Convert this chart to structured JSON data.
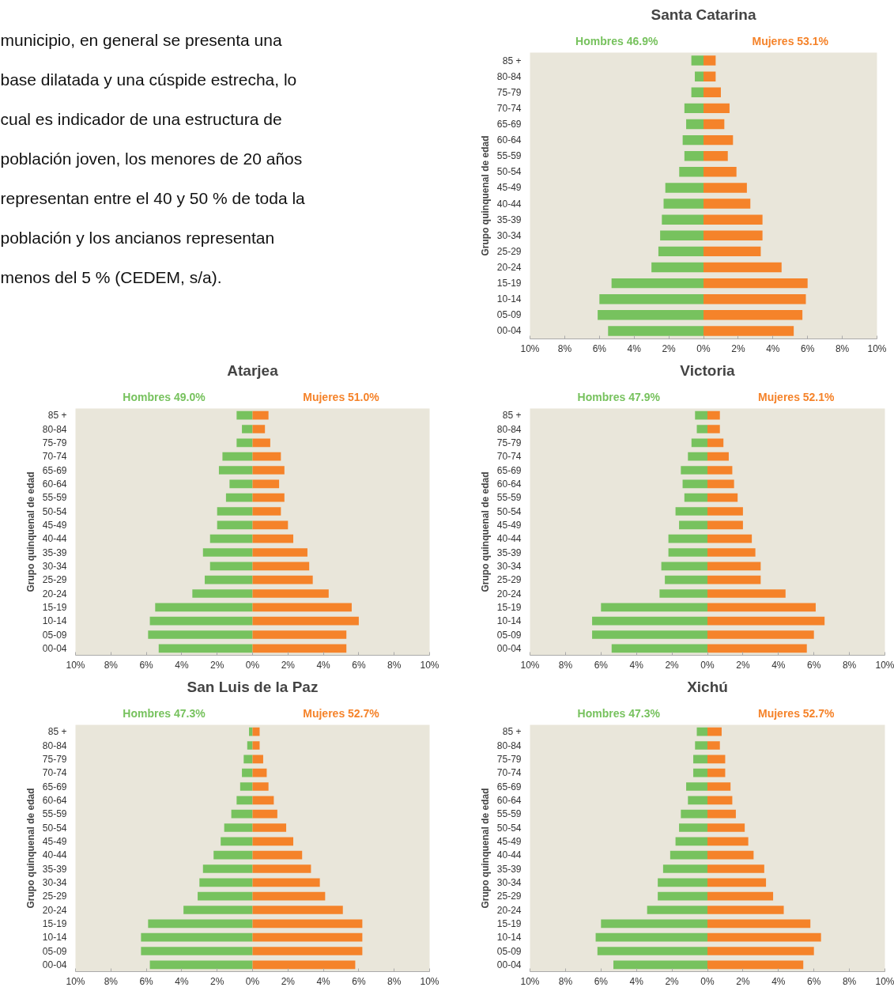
{
  "chart_data": [
    {
      "type": "other",
      "annotations": [
        "municipio, en general se presenta una",
        "base dilatada y una cúspide estrecha, lo",
        "cual es indicador de una estructura de",
        "población joven, los menores de 20 años",
        "representan entre el 40 y 50 % de toda la",
        "población y los ancianos representan",
        "menos del 5 % (CEDEM, s/a)."
      ]
    },
    {
      "type": "bar",
      "orientation": "horizontal",
      "stacked": true,
      "title": "Santa Catarina",
      "ylabel": "Grupo quinquenal de edad",
      "categories": [
        "85 +",
        "80-84",
        "75-79",
        "70-74",
        "65-69",
        "60-64",
        "55-59",
        "50-54",
        "45-49",
        "40-44",
        "35-39",
        "30-34",
        "25-29",
        "20-24",
        "15-19",
        "10-14",
        "05-09",
        "00-04"
      ],
      "series": [
        {
          "name": "Hombres 46.9%",
          "color": "#77c25e",
          "values": [
            -0.7,
            -0.5,
            -0.7,
            -1.1,
            -1.0,
            -1.2,
            -1.1,
            -1.4,
            -2.2,
            -2.3,
            -2.4,
            -2.5,
            -2.6,
            -3.0,
            -5.3,
            -6.0,
            -6.1,
            -5.5
          ]
        },
        {
          "name": "Mujeres 53.1%",
          "color": "#f5832a",
          "values": [
            0.7,
            0.7,
            1.0,
            1.5,
            1.2,
            1.7,
            1.4,
            1.9,
            2.5,
            2.7,
            3.4,
            3.4,
            3.3,
            4.5,
            6.0,
            5.9,
            5.7,
            5.2
          ]
        }
      ],
      "xlim": [
        -10,
        10
      ],
      "xticks": [
        {
          "value": -10,
          "label": "10%"
        },
        {
          "value": -8,
          "label": "8%"
        },
        {
          "value": -6,
          "label": "6%"
        },
        {
          "value": -4,
          "label": "4%"
        },
        {
          "value": -2,
          "label": "2%"
        },
        {
          "value": 0,
          "label": "0%"
        },
        {
          "value": 2,
          "label": "2%"
        },
        {
          "value": 4,
          "label": "4%"
        },
        {
          "value": 6,
          "label": "6%"
        },
        {
          "value": 8,
          "label": "8%"
        },
        {
          "value": 10,
          "label": "10%"
        }
      ]
    },
    {
      "type": "bar",
      "orientation": "horizontal",
      "stacked": true,
      "title": "Atarjea",
      "ylabel": "Grupo quinquenal de edad",
      "categories": [
        "85 +",
        "80-84",
        "75-79",
        "70-74",
        "65-69",
        "60-64",
        "55-59",
        "50-54",
        "45-49",
        "40-44",
        "35-39",
        "30-34",
        "25-29",
        "20-24",
        "15-19",
        "10-14",
        "05-09",
        "00-04"
      ],
      "series": [
        {
          "name": "Hombres 49.0%",
          "color": "#77c25e",
          "values": [
            -0.9,
            -0.6,
            -0.9,
            -1.7,
            -1.9,
            -1.3,
            -1.5,
            -2.0,
            -2.0,
            -2.4,
            -2.8,
            -2.4,
            -2.7,
            -3.4,
            -5.5,
            -5.8,
            -5.9,
            -5.3
          ]
        },
        {
          "name": "Mujeres 51.0%",
          "color": "#f5832a",
          "values": [
            0.9,
            0.7,
            1.0,
            1.6,
            1.8,
            1.5,
            1.8,
            1.6,
            2.0,
            2.3,
            3.1,
            3.2,
            3.4,
            4.3,
            5.6,
            6.0,
            5.3,
            5.3
          ]
        }
      ],
      "xlim": [
        -10,
        10
      ],
      "xticks": [
        {
          "value": -10,
          "label": "10%"
        },
        {
          "value": -8,
          "label": "8%"
        },
        {
          "value": -6,
          "label": "6%"
        },
        {
          "value": -4,
          "label": "4%"
        },
        {
          "value": -2,
          "label": "2%"
        },
        {
          "value": 0,
          "label": "0%"
        },
        {
          "value": 2,
          "label": "2%"
        },
        {
          "value": 4,
          "label": "4%"
        },
        {
          "value": 6,
          "label": "6%"
        },
        {
          "value": 8,
          "label": "8%"
        },
        {
          "value": 10,
          "label": "10%"
        }
      ]
    },
    {
      "type": "bar",
      "orientation": "horizontal",
      "stacked": true,
      "title": "Victoria",
      "ylabel": "Grupo quinquenal de edad",
      "categories": [
        "85 +",
        "80-84",
        "75-79",
        "70-74",
        "65-69",
        "60-64",
        "55-59",
        "50-54",
        "45-49",
        "40-44",
        "35-39",
        "30-34",
        "25-29",
        "20-24",
        "15-19",
        "10-14",
        "05-09",
        "00-04"
      ],
      "series": [
        {
          "name": "Hombres 47.9%",
          "color": "#77c25e",
          "values": [
            -0.7,
            -0.6,
            -0.9,
            -1.1,
            -1.5,
            -1.4,
            -1.3,
            -1.8,
            -1.6,
            -2.2,
            -2.2,
            -2.6,
            -2.4,
            -2.7,
            -6.0,
            -6.5,
            -6.5,
            -5.4
          ]
        },
        {
          "name": "Mujeres 52.1%",
          "color": "#f5832a",
          "values": [
            0.7,
            0.7,
            0.9,
            1.2,
            1.4,
            1.5,
            1.7,
            2.0,
            2.0,
            2.5,
            2.7,
            3.0,
            3.0,
            4.4,
            6.1,
            6.6,
            6.0,
            5.6
          ]
        }
      ],
      "xlim": [
        -10,
        10
      ],
      "xticks": [
        {
          "value": -10,
          "label": "10%"
        },
        {
          "value": -8,
          "label": "8%"
        },
        {
          "value": -6,
          "label": "6%"
        },
        {
          "value": -4,
          "label": "4%"
        },
        {
          "value": -2,
          "label": "2%"
        },
        {
          "value": 0,
          "label": "0%"
        },
        {
          "value": 2,
          "label": "2%"
        },
        {
          "value": 4,
          "label": "4%"
        },
        {
          "value": 6,
          "label": "6%"
        },
        {
          "value": 8,
          "label": "8%"
        },
        {
          "value": 10,
          "label": "10%"
        }
      ]
    },
    {
      "type": "bar",
      "orientation": "horizontal",
      "stacked": true,
      "title": "San Luis de la Paz",
      "ylabel": "Grupo quinquenal de edad",
      "categories": [
        "85 +",
        "80-84",
        "75-79",
        "70-74",
        "65-69",
        "60-64",
        "55-59",
        "50-54",
        "45-49",
        "40-44",
        "35-39",
        "30-34",
        "25-29",
        "20-24",
        "15-19",
        "10-14",
        "05-09",
        "00-04"
      ],
      "series": [
        {
          "name": "Hombres 47.3%",
          "color": "#77c25e",
          "values": [
            -0.2,
            -0.3,
            -0.5,
            -0.6,
            -0.7,
            -0.9,
            -1.2,
            -1.6,
            -1.8,
            -2.2,
            -2.8,
            -3.0,
            -3.1,
            -3.9,
            -5.9,
            -6.3,
            -6.3,
            -5.8
          ]
        },
        {
          "name": "Mujeres 52.7%",
          "color": "#f5832a",
          "values": [
            0.4,
            0.4,
            0.6,
            0.8,
            0.9,
            1.2,
            1.4,
            1.9,
            2.3,
            2.8,
            3.3,
            3.8,
            4.1,
            5.1,
            6.2,
            6.2,
            6.2,
            5.8
          ]
        }
      ],
      "xlim": [
        -10,
        10
      ],
      "xticks": [
        {
          "value": -10,
          "label": "10%"
        },
        {
          "value": -8,
          "label": "8%"
        },
        {
          "value": -6,
          "label": "6%"
        },
        {
          "value": -4,
          "label": "4%"
        },
        {
          "value": -2,
          "label": "2%"
        },
        {
          "value": 0,
          "label": "0%"
        },
        {
          "value": 2,
          "label": "2%"
        },
        {
          "value": 4,
          "label": "4%"
        },
        {
          "value": 6,
          "label": "6%"
        },
        {
          "value": 8,
          "label": "8%"
        },
        {
          "value": 10,
          "label": "10%"
        }
      ]
    },
    {
      "type": "bar",
      "orientation": "horizontal",
      "stacked": true,
      "title": "Xichú",
      "ylabel": "Grupo quinquenal de edad",
      "categories": [
        "85 +",
        "80-84",
        "75-79",
        "70-74",
        "65-69",
        "60-64",
        "55-59",
        "50-54",
        "45-49",
        "40-44",
        "35-39",
        "30-34",
        "25-29",
        "20-24",
        "15-19",
        "10-14",
        "05-09",
        "00-04"
      ],
      "series": [
        {
          "name": "Hombres 47.3%",
          "color": "#77c25e",
          "values": [
            -0.6,
            -0.7,
            -0.8,
            -0.8,
            -1.2,
            -1.1,
            -1.5,
            -1.6,
            -1.8,
            -2.1,
            -2.5,
            -2.8,
            -2.8,
            -3.4,
            -6.0,
            -6.3,
            -6.2,
            -5.3
          ]
        },
        {
          "name": "Mujeres 52.7%",
          "color": "#f5832a",
          "values": [
            0.8,
            0.7,
            1.0,
            1.0,
            1.3,
            1.4,
            1.6,
            2.1,
            2.3,
            2.6,
            3.2,
            3.3,
            3.7,
            4.3,
            5.8,
            6.4,
            6.0,
            5.4
          ]
        }
      ],
      "xlim": [
        -10,
        10
      ],
      "xticks": [
        {
          "value": -10,
          "label": "10%"
        },
        {
          "value": -8,
          "label": "8%"
        },
        {
          "value": -6,
          "label": "6%"
        },
        {
          "value": -4,
          "label": "4%"
        },
        {
          "value": -2,
          "label": "2%"
        },
        {
          "value": 0,
          "label": "0%"
        },
        {
          "value": 2,
          "label": "2%"
        },
        {
          "value": 4,
          "label": "4%"
        },
        {
          "value": 6,
          "label": "6%"
        },
        {
          "value": 8,
          "label": "8%"
        },
        {
          "value": 10,
          "label": "10%"
        }
      ]
    }
  ]
}
